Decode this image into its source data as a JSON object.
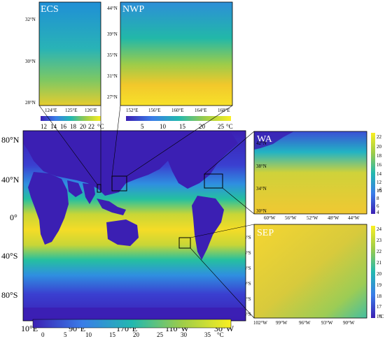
{
  "panels": {
    "ecs": {
      "title": "ECS",
      "lat_ticks": [
        "32°N",
        "30°N",
        "28°N"
      ],
      "lon_ticks": [
        "124°E",
        "125°E",
        "126°E"
      ],
      "colorbar_ticks": [
        "12",
        "14",
        "16",
        "18",
        "20",
        "22"
      ],
      "unit": "°C"
    },
    "nwp": {
      "title": "NWP",
      "lat_ticks": [
        "44°N",
        "39°N",
        "35°N",
        "31°N",
        "27°N"
      ],
      "lon_ticks": [
        "152°E",
        "156°E",
        "160°E",
        "164°E",
        "168°E"
      ],
      "colorbar_ticks": [
        "5",
        "10",
        "15",
        "20",
        "25"
      ],
      "unit": "°C"
    },
    "wa": {
      "title": "WA",
      "lat_ticks": [
        "42°N",
        "38°N",
        "34°N",
        "30°N"
      ],
      "lon_ticks": [
        "60°W",
        "56°W",
        "52°W",
        "48°W",
        "44°W"
      ],
      "colorbar_ticks": [
        "22",
        "20",
        "18",
        "16",
        "14",
        "12",
        "10",
        "8",
        "6",
        "4"
      ],
      "unit": "°C"
    },
    "sep": {
      "title": "SEP",
      "lat_ticks": [
        "24°S",
        "26°S",
        "28°S",
        "30°S",
        "32°S",
        "34°S"
      ],
      "lon_ticks": [
        "102°W",
        "99°W",
        "96°W",
        "93°W",
        "90°W"
      ],
      "colorbar_ticks": [
        "24",
        "23",
        "22",
        "21",
        "20",
        "19",
        "18",
        "17",
        "16"
      ],
      "unit": "°C"
    }
  },
  "world": {
    "lat_ticks": [
      "80°N",
      "40°N",
      "0°",
      "40°S",
      "80°S"
    ],
    "lon_ticks": [
      "10°E",
      "90°E",
      "170°E",
      "110°W",
      "30°W"
    ],
    "colorbar_ticks": [
      "0",
      "5",
      "10",
      "15",
      "20",
      "25",
      "30",
      "35"
    ],
    "unit": "°C"
  },
  "colors": {
    "cold": "#3b1fb3",
    "cool": "#2f8fe0",
    "mid": "#25c0a0",
    "warm": "#a8cf3a",
    "hot": "#f2d52a",
    "hottest": "#f9ef22",
    "land": "#3b1fb3"
  }
}
